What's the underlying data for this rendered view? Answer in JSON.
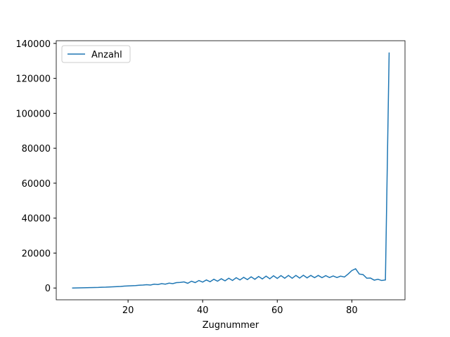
{
  "chart_data": {
    "type": "line",
    "xlabel": "Zugnummer",
    "legend": "upper left",
    "x": [
      5,
      6,
      7,
      8,
      9,
      10,
      11,
      12,
      13,
      14,
      15,
      16,
      17,
      18,
      19,
      20,
      21,
      22,
      23,
      24,
      25,
      26,
      27,
      28,
      29,
      30,
      31,
      32,
      33,
      34,
      35,
      36,
      37,
      38,
      39,
      40,
      41,
      42,
      43,
      44,
      45,
      46,
      47,
      48,
      49,
      50,
      51,
      52,
      53,
      54,
      55,
      56,
      57,
      58,
      59,
      60,
      61,
      62,
      63,
      64,
      65,
      66,
      67,
      68,
      69,
      70,
      71,
      72,
      73,
      74,
      75,
      76,
      77,
      78,
      79,
      80,
      81,
      82,
      83,
      84,
      85,
      86,
      87,
      88,
      89,
      90
    ],
    "series": [
      {
        "name": "Anzahl",
        "color": "#1f77b4",
        "values": [
          0,
          50,
          100,
          150,
          200,
          250,
          300,
          350,
          450,
          500,
          600,
          700,
          800,
          900,
          1100,
          1200,
          1300,
          1400,
          1600,
          1700,
          1900,
          1700,
          2200,
          2000,
          2500,
          2200,
          2800,
          2500,
          3100,
          3200,
          3500,
          2700,
          3900,
          3100,
          4300,
          3400,
          4600,
          3600,
          5000,
          3900,
          5300,
          4100,
          5600,
          4300,
          5900,
          4600,
          6100,
          4800,
          6400,
          5000,
          6600,
          5200,
          6800,
          5300,
          7000,
          5500,
          7100,
          5600,
          7200,
          5600,
          7200,
          5700,
          7300,
          5800,
          7200,
          5900,
          7200,
          5900,
          7100,
          6000,
          6900,
          6000,
          6800,
          6300,
          8000,
          10000,
          11000,
          8000,
          7700,
          5600,
          5700,
          4500,
          5000,
          4300,
          4600,
          134800
        ]
      }
    ],
    "xlim": [
      0.75,
      94.25
    ],
    "ylim": [
      -6740,
      141540
    ],
    "xticks": [
      20,
      40,
      60,
      80
    ],
    "yticks": [
      0,
      20000,
      40000,
      60000,
      80000,
      100000,
      120000,
      140000
    ]
  }
}
